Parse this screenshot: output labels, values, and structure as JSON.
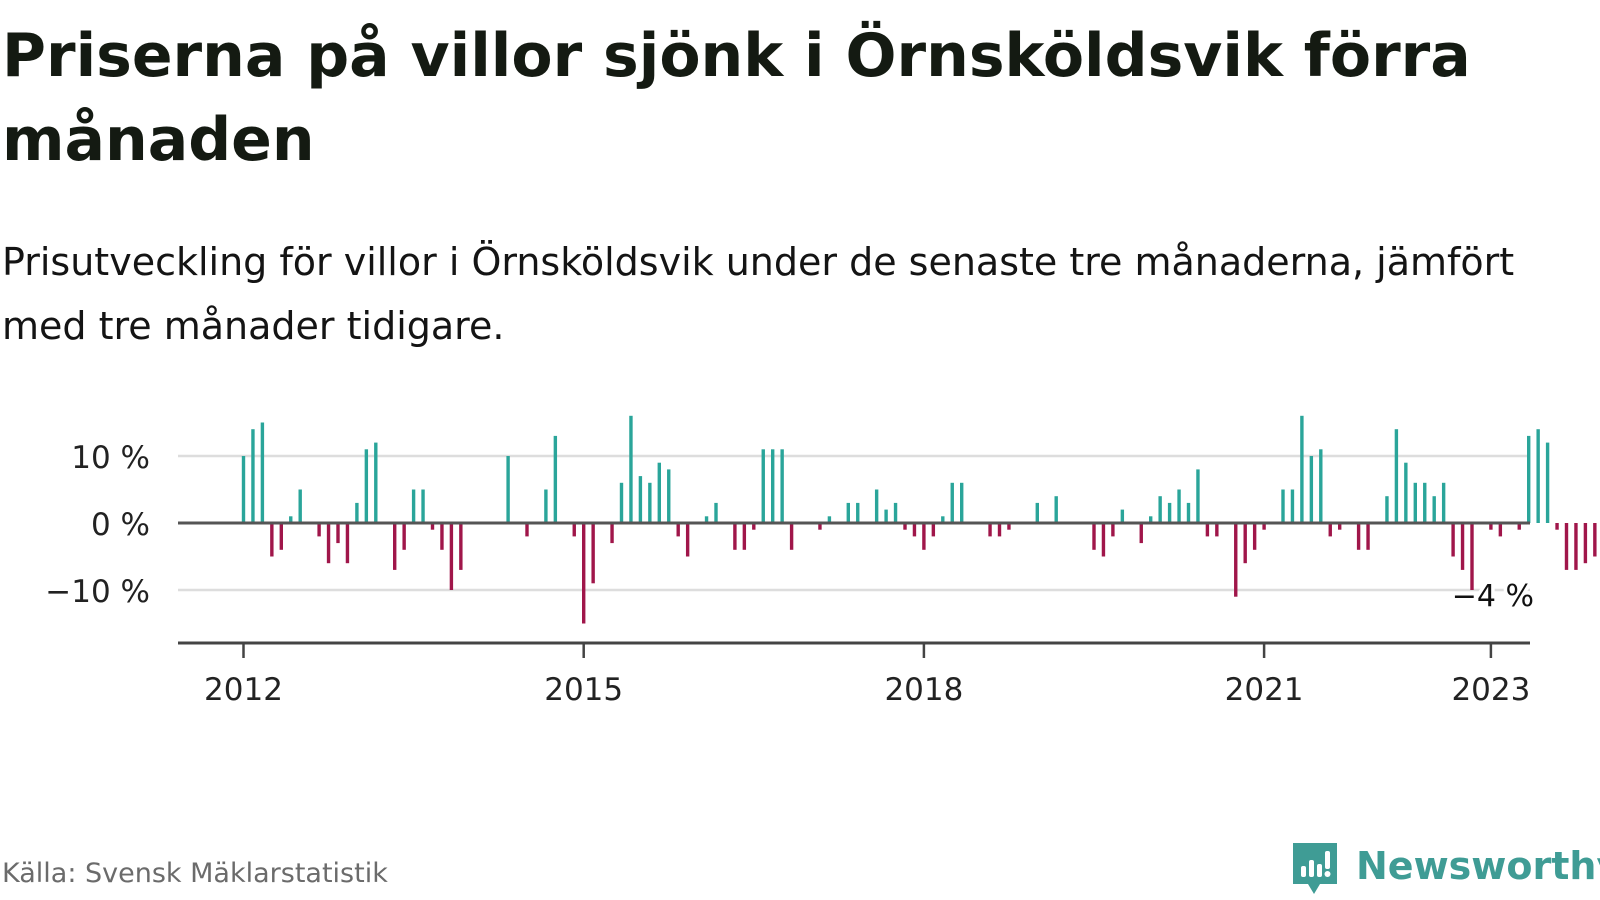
{
  "title": "Priserna på villor sjönk i Örnsköldsvik förra månaden",
  "subtitle": "Prisutveckling för villor i Örnsköldsvik under de senaste tre månaderna, jämfört med tre månader tidigare.",
  "source": "Källa: Svensk Mäklarstatistik",
  "brand": {
    "name": "Newsworthy",
    "icon": "bar-chart-speech-bubble-icon"
  },
  "colors": {
    "positive": "#2aa59a",
    "negative": "#a0164a",
    "zero_line": "#555555",
    "grid": "#dddddd",
    "axis": "#444444",
    "brand": "#3f9c95"
  },
  "chart_data": {
    "type": "bar",
    "start": "2012-01",
    "frequency": "monthly",
    "unit": "%",
    "values": [
      10,
      14,
      15,
      -5,
      -4,
      1,
      5,
      0,
      -2,
      -6,
      -3,
      -6,
      3,
      11,
      12,
      0,
      -7,
      -4,
      5,
      5,
      -1,
      -4,
      -10,
      -7,
      0,
      0,
      0,
      0,
      10,
      0,
      -2,
      0,
      5,
      13,
      0,
      -2,
      -15,
      -9,
      0,
      -3,
      6,
      16,
      7,
      6,
      9,
      8,
      -2,
      -5,
      0,
      1,
      3,
      0,
      -4,
      -4,
      -1,
      11,
      11,
      11,
      -4,
      0,
      0,
      -1,
      1,
      0,
      3,
      3,
      0,
      5,
      2,
      3,
      -1,
      -2,
      -4,
      -2,
      1,
      6,
      6,
      0,
      0,
      -2,
      -2,
      -1,
      0,
      0,
      3,
      0,
      4,
      0,
      0,
      0,
      -4,
      -5,
      -2,
      2,
      0,
      -3,
      1,
      4,
      3,
      5,
      3,
      8,
      -2,
      -2,
      0,
      -11,
      -6,
      -4,
      -1,
      0,
      5,
      5,
      16,
      10,
      11,
      -2,
      -1,
      0,
      -4,
      -4,
      0,
      4,
      14,
      9,
      6,
      6,
      4,
      6,
      -5,
      -7,
      -10,
      0,
      -1,
      -2,
      0,
      -1,
      13,
      14,
      12,
      -1,
      -7,
      -7,
      -6,
      -5,
      -4
    ],
    "ylim": [
      -17,
      17
    ],
    "yticks": [
      -10,
      0,
      10
    ],
    "ytick_labels": [
      "−10 %",
      "0 %",
      "10 %"
    ],
    "xticks": [
      {
        "label": "2012",
        "date": "2012-01"
      },
      {
        "label": "2015",
        "date": "2015-01"
      },
      {
        "label": "2018",
        "date": "2018-01"
      },
      {
        "label": "2021",
        "date": "2021-01"
      },
      {
        "label": "2023",
        "date": "2023-01"
      }
    ],
    "annotation": {
      "text": "−4 %",
      "date": "2023-01",
      "value": -4
    },
    "grid": true
  }
}
